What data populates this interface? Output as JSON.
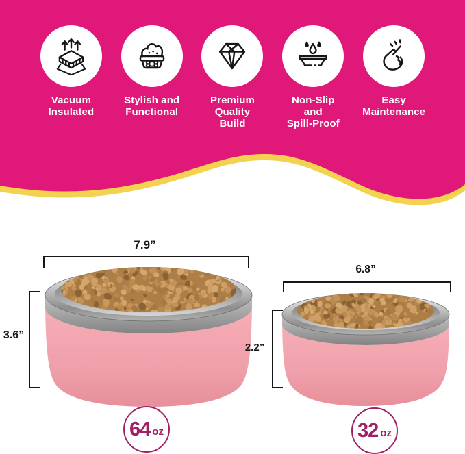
{
  "colors": {
    "background_pink": "#E0187A",
    "trim_yellow": "#F2D24F",
    "badge": "#A02066",
    "dimension_text": "#161616",
    "bowl_pink": "#F0A3AB"
  },
  "hero": {
    "features": [
      {
        "icon": "vacuum-insulated-icon",
        "label": "Vacuum\nInsulated"
      },
      {
        "icon": "dog-bowl-bone-icon",
        "label": "Stylish and\nFunctional"
      },
      {
        "icon": "diamond-icon",
        "label": "Premium\nQuality\nBuild"
      },
      {
        "icon": "water-drops-dish-icon",
        "label": "Non-Slip\nand\nSpill-Proof"
      },
      {
        "icon": "snap-fingers-icon",
        "label": "Easy\nMaintenance"
      }
    ]
  },
  "products": {
    "large_bowl": {
      "diameter_label": "7.9”",
      "height_label": "3.6”",
      "capacity": "64",
      "capacity_unit": "oz"
    },
    "small_bowl": {
      "diameter_label": "6.8”",
      "height_label": "2.2”",
      "capacity": "32",
      "capacity_unit": "oz"
    }
  }
}
